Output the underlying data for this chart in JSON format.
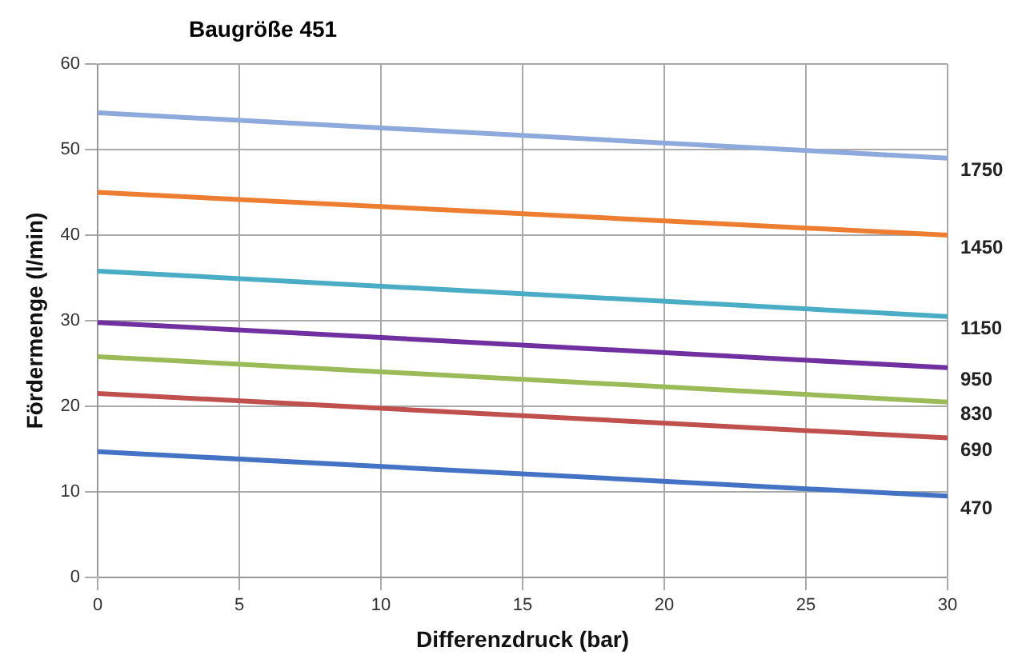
{
  "chart_data": {
    "type": "line",
    "title": "Baugröße 451",
    "xlabel": "Differenzdruck (bar)",
    "ylabel": "Fördermenge (l/min)",
    "x": [
      0,
      30
    ],
    "xlim": [
      0,
      30
    ],
    "xticks": [
      0,
      5,
      10,
      15,
      20,
      25,
      30
    ],
    "ylim": [
      0,
      60
    ],
    "yticks": [
      0,
      10,
      20,
      30,
      40,
      50,
      60
    ],
    "grid": true,
    "legend": false,
    "marker": "none",
    "series": [
      {
        "name": "1750",
        "color": "#8ea9db",
        "values": [
          54.3,
          49
        ]
      },
      {
        "name": "1450",
        "color": "#ed7d31",
        "values": [
          45,
          40
        ]
      },
      {
        "name": "1150",
        "color": "#4bacc6",
        "values": [
          35.8,
          30.5
        ]
      },
      {
        "name": "950",
        "color": "#7030a0",
        "values": [
          29.8,
          24.5
        ]
      },
      {
        "name": "830",
        "color": "#9bbb59",
        "values": [
          25.8,
          20.5
        ]
      },
      {
        "name": "690",
        "color": "#c0504d",
        "values": [
          21.5,
          16.3
        ]
      },
      {
        "name": "470",
        "color": "#4472c4",
        "values": [
          14.7,
          9.5
        ]
      }
    ]
  }
}
